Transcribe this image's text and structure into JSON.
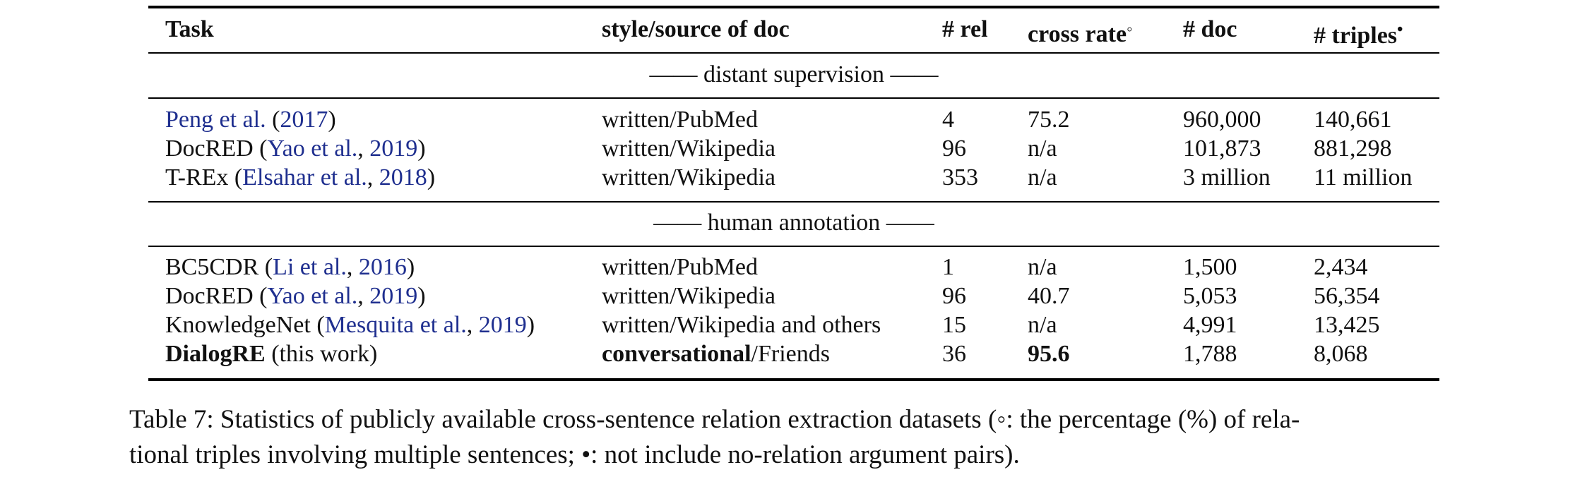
{
  "table": {
    "headers": {
      "task": "Task",
      "style": "style/source of doc",
      "rel": "# rel",
      "cross_rate": "cross rate",
      "cross_rate_mark": "◦",
      "doc": "# doc",
      "triples": "# triples",
      "triples_mark": "•"
    },
    "sections": [
      {
        "label": "—— distant supervision ——",
        "rows": [
          {
            "task_plain": "",
            "task_cite": "Peng et al.",
            "task_open": " (",
            "task_year": "2017",
            "task_close": ")",
            "style_bold": "",
            "style_rest": "written/PubMed",
            "rel": "4",
            "cross_rate": "75.2",
            "doc": "960,000",
            "triples": "140,661"
          },
          {
            "task_plain": "DocRED (",
            "task_cite": "Yao et al.",
            "task_open": ", ",
            "task_year": "2019",
            "task_close": ")",
            "style_bold": "",
            "style_rest": "written/Wikipedia",
            "rel": "96",
            "cross_rate": "n/a",
            "doc": "101,873",
            "triples": "881,298"
          },
          {
            "task_plain": "T-REx (",
            "task_cite": "Elsahar et al.",
            "task_open": ", ",
            "task_year": "2018",
            "task_close": ")",
            "style_bold": "",
            "style_rest": "written/Wikipedia",
            "rel": "353",
            "cross_rate": "n/a",
            "doc": "3 million",
            "triples": "11 million"
          }
        ]
      },
      {
        "label": "—— human annotation ——",
        "rows": [
          {
            "task_plain": "BC5CDR (",
            "task_cite": "Li et al.",
            "task_open": ", ",
            "task_year": "2016",
            "task_close": ")",
            "style_bold": "",
            "style_rest": "written/PubMed",
            "rel": "1",
            "cross_rate": "n/a",
            "doc": "1,500",
            "triples": "2,434"
          },
          {
            "task_plain": "DocRED (",
            "task_cite": "Yao et al.",
            "task_open": ", ",
            "task_year": "2019",
            "task_close": ")",
            "style_bold": "",
            "style_rest": "written/Wikipedia",
            "rel": "96",
            "cross_rate": "40.7",
            "doc": "5,053",
            "triples": "56,354"
          },
          {
            "task_plain": "KnowledgeNet (",
            "task_cite": "Mesquita et al.",
            "task_open": ", ",
            "task_year": "2019",
            "task_close": ")",
            "style_bold": "",
            "style_rest": "written/Wikipedia and others",
            "rel": "15",
            "cross_rate": "n/a",
            "doc": "4,991",
            "triples": "13,425"
          }
        ]
      }
    ],
    "last_row": {
      "task_bold": "DialogRE",
      "task_rest": " (this work)",
      "style_bold": "conversational",
      "style_rest": "/Friends",
      "rel": "36",
      "cross_rate": "95.6",
      "doc": "1,788",
      "triples": "8,068"
    }
  },
  "caption": {
    "line1": "Table 7: Statistics of publicly available cross-sentence relation extraction datasets (◦: the percentage (%) of rela-",
    "line2": "tional triples involving multiple sentences; •: not include no-relation argument pairs)."
  },
  "colors": {
    "citation": "#1f2f8f",
    "text": "#111111"
  }
}
